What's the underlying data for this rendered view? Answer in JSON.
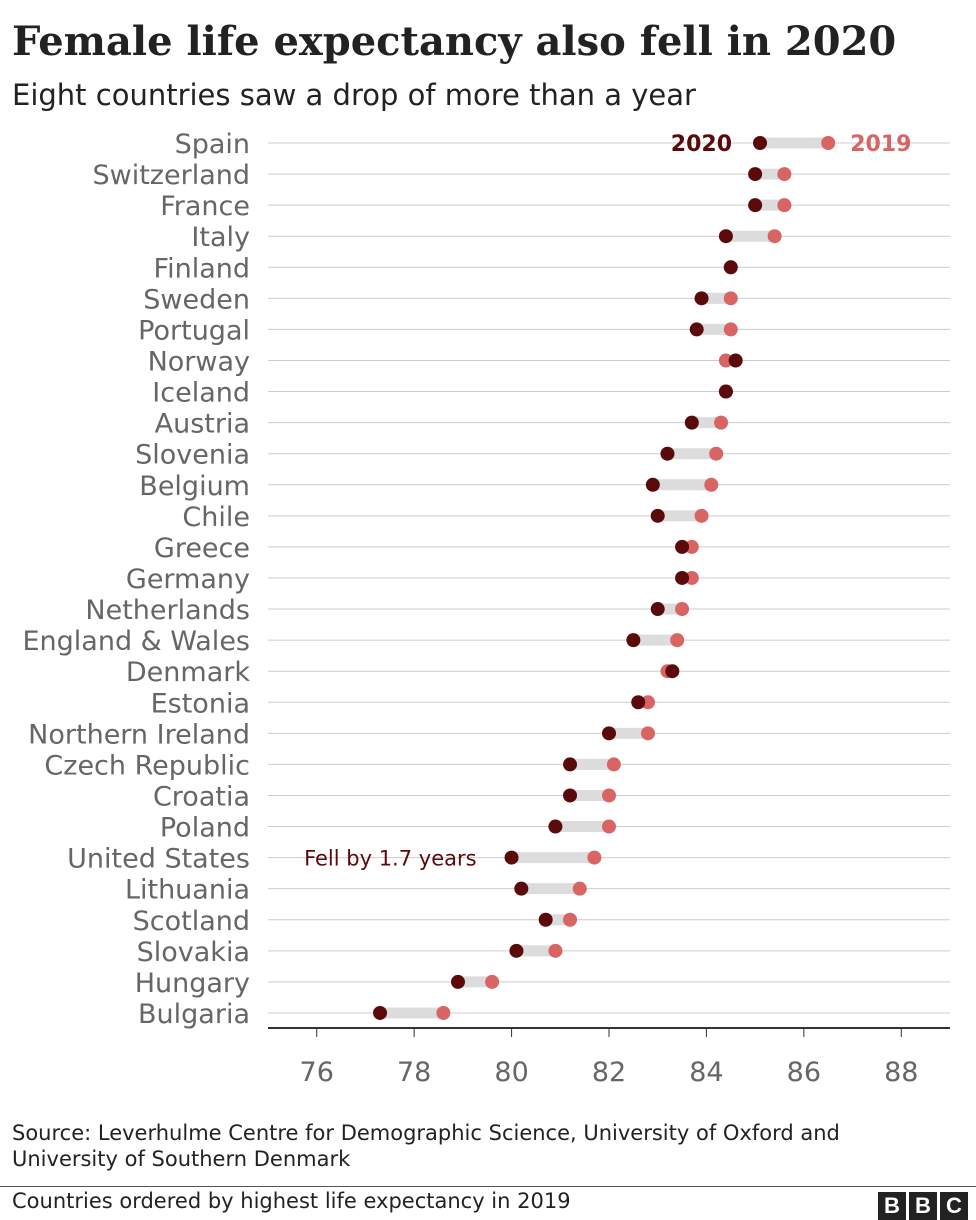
{
  "header": {
    "title": "Female life expectancy also fell in 2020",
    "subtitle": "Eight countries saw a drop of more than a year"
  },
  "footer": {
    "source": "Source: Leverhulme Centre for Demographic Science, University of Oxford and University of Southern Denmark",
    "note": "Countries ordered by highest life expectancy in 2019",
    "logo_letters": [
      "B",
      "B",
      "C"
    ]
  },
  "colors": {
    "y2020": "#5a0a0a",
    "y2019": "#d96464",
    "connector": "#dcdcdc",
    "gridline": "#cccccc",
    "axis": "#333333",
    "tick_label": "#666666",
    "category_label": "#666666"
  },
  "chart_data": {
    "type": "dumbbell",
    "title": "Female life expectancy also fell in 2020",
    "subtitle": "Eight countries saw a drop of more than a year",
    "xlim": [
      75,
      89
    ],
    "xticks": [
      76,
      78,
      80,
      82,
      84,
      86,
      88
    ],
    "grid": true,
    "legend_labels": {
      "y2020": "2020",
      "y2019": "2019"
    },
    "annotation": {
      "country": "United States",
      "text": "Fell by 1.7 years"
    },
    "categories": [
      "Spain",
      "Switzerland",
      "France",
      "Italy",
      "Finland",
      "Sweden",
      "Portugal",
      "Norway",
      "Iceland",
      "Austria",
      "Slovenia",
      "Belgium",
      "Chile",
      "Greece",
      "Germany",
      "Netherlands",
      "England & Wales",
      "Denmark",
      "Estonia",
      "Northern Ireland",
      "Czech Republic",
      "Croatia",
      "Poland",
      "United States",
      "Lithuania",
      "Scotland",
      "Slovakia",
      "Hungary",
      "Bulgaria"
    ],
    "series": [
      {
        "name": "2020",
        "values": [
          85.1,
          85.0,
          85.0,
          84.4,
          84.5,
          83.9,
          83.8,
          84.6,
          84.4,
          83.7,
          83.2,
          82.9,
          83.0,
          83.5,
          83.5,
          83.0,
          82.5,
          83.3,
          82.6,
          82.0,
          81.2,
          81.2,
          80.9,
          80.0,
          80.2,
          80.7,
          80.1,
          78.9,
          77.3
        ]
      },
      {
        "name": "2019",
        "values": [
          86.5,
          85.6,
          85.6,
          85.4,
          84.5,
          84.5,
          84.5,
          84.4,
          84.4,
          84.3,
          84.2,
          84.1,
          83.9,
          83.7,
          83.7,
          83.5,
          83.4,
          83.2,
          82.8,
          82.8,
          82.1,
          82.0,
          82.0,
          81.7,
          81.4,
          81.2,
          80.9,
          79.6,
          78.6
        ]
      }
    ]
  }
}
